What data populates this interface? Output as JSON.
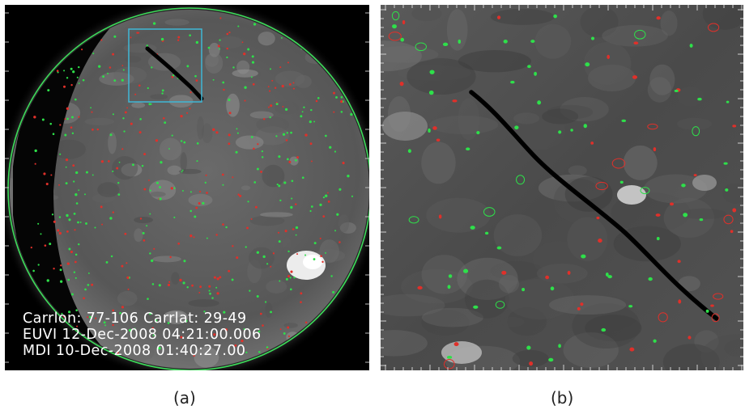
{
  "panel_a": {
    "overlay_lines": [
      "Carrlon: 77-106 Carrlat: 29-49",
      "EUVI 12-Dec-2008 04:21:00.006",
      "MDI 10-Dec-2008 01:40:27.00"
    ],
    "label": "(a)"
  },
  "panel_b": {
    "label": "(b)"
  },
  "colors": {
    "limb_outline": "#3ddc5a",
    "selection_box": "#3fb7d6",
    "positive_contour": "#2ee04a",
    "negative_contour": "#e0302a",
    "filament": "#000000"
  }
}
